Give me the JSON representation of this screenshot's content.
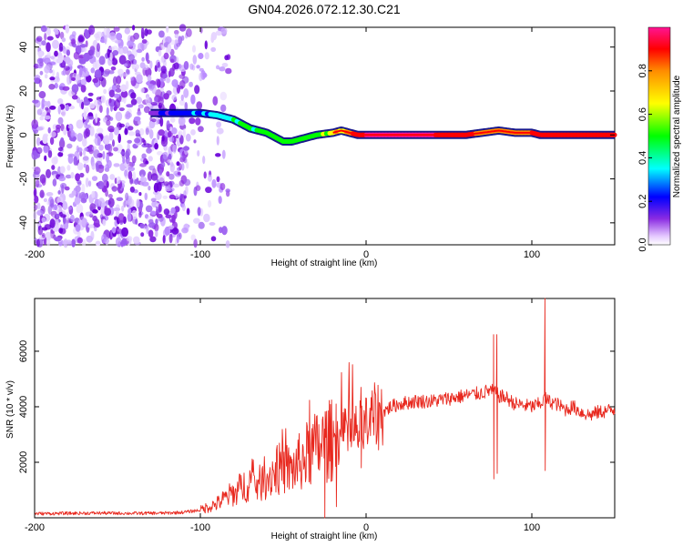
{
  "title": "GN04.2026.072.12.30.C21",
  "chart_data": [
    {
      "type": "heatmap",
      "xlabel": "Height of straight line (km)",
      "ylabel": "Frequency (Hz)",
      "xlim": [
        -200,
        150
      ],
      "ylim": [
        -50,
        49
      ],
      "xticks": [
        -200,
        -100,
        0,
        100
      ],
      "yticks": [
        -40,
        -20,
        0,
        20,
        40
      ],
      "colorbar": {
        "label": "Normalized spectral amplitude",
        "range": [
          0,
          1
        ],
        "ticks": [
          0.0,
          0.2,
          0.4,
          0.6,
          0.8
        ],
        "colors": [
          "#ffffff",
          "#8a2be2",
          "#0000ff",
          "#00ffff",
          "#00ff00",
          "#ffff00",
          "#ff8c00",
          "#ff0000",
          "#ff1493"
        ]
      },
      "noise_region_x": [
        -200,
        -95
      ],
      "ridge": {
        "x": [
          -130,
          -110,
          -100,
          -90,
          -80,
          -70,
          -60,
          -50,
          -45,
          -40,
          -30,
          -20,
          -15,
          -10,
          -5,
          0,
          20,
          40,
          60,
          70,
          80,
          90,
          100,
          105,
          110,
          150
        ],
        "freq": [
          10,
          10,
          10,
          9,
          7,
          3,
          1,
          -3,
          -3,
          -2,
          0,
          1,
          2,
          1,
          0,
          0,
          0,
          0,
          0,
          1,
          2,
          1,
          1,
          0,
          0,
          0
        ],
        "amplitude": [
          0.2,
          0.25,
          0.35,
          0.4,
          0.45,
          0.55,
          0.6,
          0.55,
          0.55,
          0.6,
          0.65,
          0.75,
          0.8,
          0.85,
          0.95,
          1.0,
          1.0,
          1.0,
          0.95,
          0.85,
          0.8,
          0.85,
          0.9,
          0.95,
          0.95,
          1.0
        ]
      }
    },
    {
      "type": "line",
      "xlabel": "Height of straight line (km)",
      "ylabel": "SNR (10 * v/v)",
      "xlim": [
        -200,
        150
      ],
      "ylim": [
        0,
        7900
      ],
      "xticks": [
        -200,
        -100,
        0,
        100
      ],
      "yticks": [
        2000,
        4000,
        6000
      ],
      "color": "#e8281e",
      "series": [
        {
          "name": "SNR",
          "x": [
            -200,
            -180,
            -160,
            -140,
            -120,
            -110,
            -100,
            -95,
            -90,
            -85,
            -80,
            -75,
            -70,
            -65,
            -60,
            -55,
            -50,
            -45,
            -40,
            -35,
            -30,
            -25,
            -20,
            -15,
            -10,
            -5,
            0,
            5,
            10,
            15,
            20,
            30,
            40,
            50,
            60,
            70,
            75,
            78,
            80,
            85,
            90,
            100,
            105,
            108,
            110,
            115,
            120,
            125,
            130,
            135,
            140,
            150
          ],
          "y": [
            150,
            160,
            170,
            160,
            170,
            200,
            280,
            400,
            500,
            700,
            900,
            1100,
            1300,
            1200,
            1400,
            1700,
            1800,
            1700,
            2000,
            2300,
            2500,
            2700,
            2800,
            2900,
            3000,
            3100,
            3300,
            3600,
            3800,
            4000,
            4100,
            4200,
            4200,
            4300,
            4400,
            4500,
            4600,
            4500,
            4400,
            4300,
            4100,
            4000,
            4100,
            4300,
            4200,
            4100,
            3900,
            4000,
            3800,
            3700,
            3800,
            3900
          ]
        }
      ],
      "spikes": [
        {
          "x": 77,
          "peak": 6600,
          "trough": 1400
        },
        {
          "x": 79,
          "peak": 6600,
          "trough": 1600
        },
        {
          "x": 108,
          "peak": 7900,
          "trough": 1700
        },
        {
          "x": -25,
          "peak": 3200,
          "trough": 0
        },
        {
          "x": -18,
          "peak": 4100,
          "trough": 400
        },
        {
          "x": -3,
          "peak": 4700,
          "trough": 1800
        }
      ]
    }
  ]
}
